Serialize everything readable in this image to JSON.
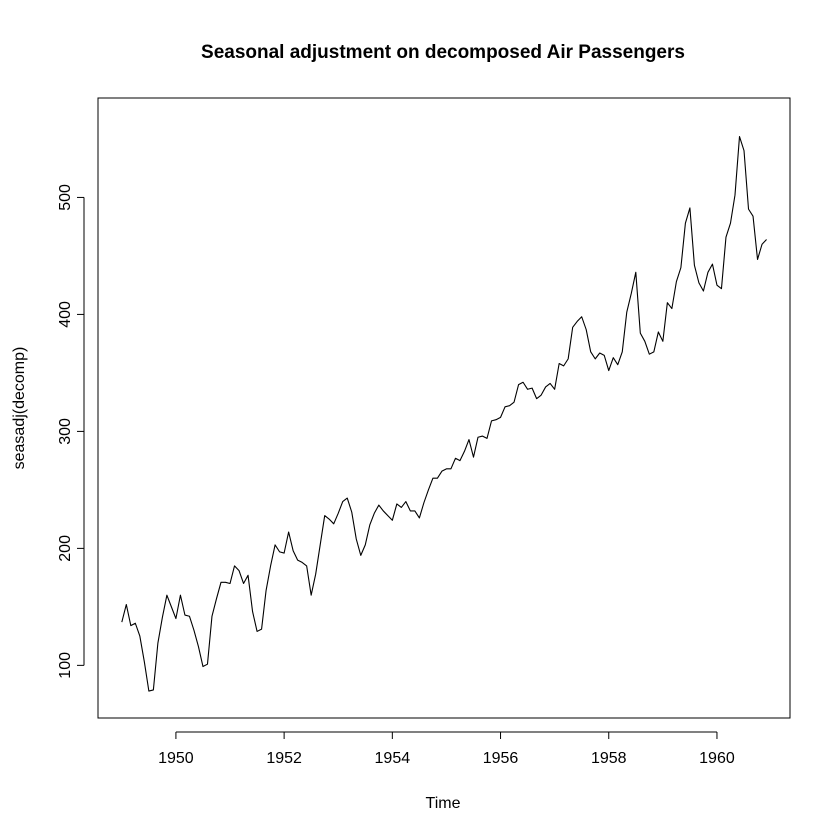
{
  "chart_data": {
    "type": "line",
    "title": "Seasonal adjustment on decomposed Air Passengers",
    "xlabel": "Time",
    "ylabel": "seasadj(decomp)",
    "xlim": [
      1948.56,
      1961.35
    ],
    "ylim": [
      55,
      585
    ],
    "xticks": [
      1950,
      1952,
      1954,
      1956,
      1958,
      1960
    ],
    "yticks": [
      100,
      200,
      300,
      400,
      500
    ],
    "x_start": 1949.0,
    "x_step": 0.083333,
    "series": [
      {
        "values": [
          137,
          152,
          134,
          136,
          125,
          103,
          78,
          79,
          119,
          141,
          160,
          150,
          140,
          160,
          143,
          142,
          130,
          116,
          99,
          101,
          142,
          157,
          171,
          171,
          170,
          185,
          181,
          170,
          177,
          146,
          129,
          131,
          164,
          185,
          203,
          197,
          196,
          214,
          198,
          190,
          188,
          185,
          160,
          178,
          203,
          228,
          225,
          221,
          230,
          240,
          243,
          231,
          208,
          194,
          203,
          220,
          230,
          237,
          232,
          228,
          224,
          238,
          235,
          240,
          232,
          232,
          226,
          239,
          250,
          260,
          260,
          266,
          268,
          268,
          277,
          275,
          283,
          293,
          278,
          295,
          296,
          294,
          309,
          310,
          312,
          321,
          322,
          325,
          340,
          342,
          336,
          337,
          328,
          331,
          338,
          341,
          336,
          358,
          356,
          362,
          389,
          394,
          398,
          387,
          368,
          362,
          367,
          365,
          352,
          363,
          357,
          368,
          402,
          418,
          436,
          384,
          377,
          366,
          368,
          385,
          377,
          410,
          405,
          428,
          440,
          478,
          491,
          442,
          427,
          420,
          436,
          443,
          425,
          422,
          466,
          478,
          502,
          552,
          540,
          490,
          484,
          447,
          460,
          464
        ]
      }
    ]
  }
}
